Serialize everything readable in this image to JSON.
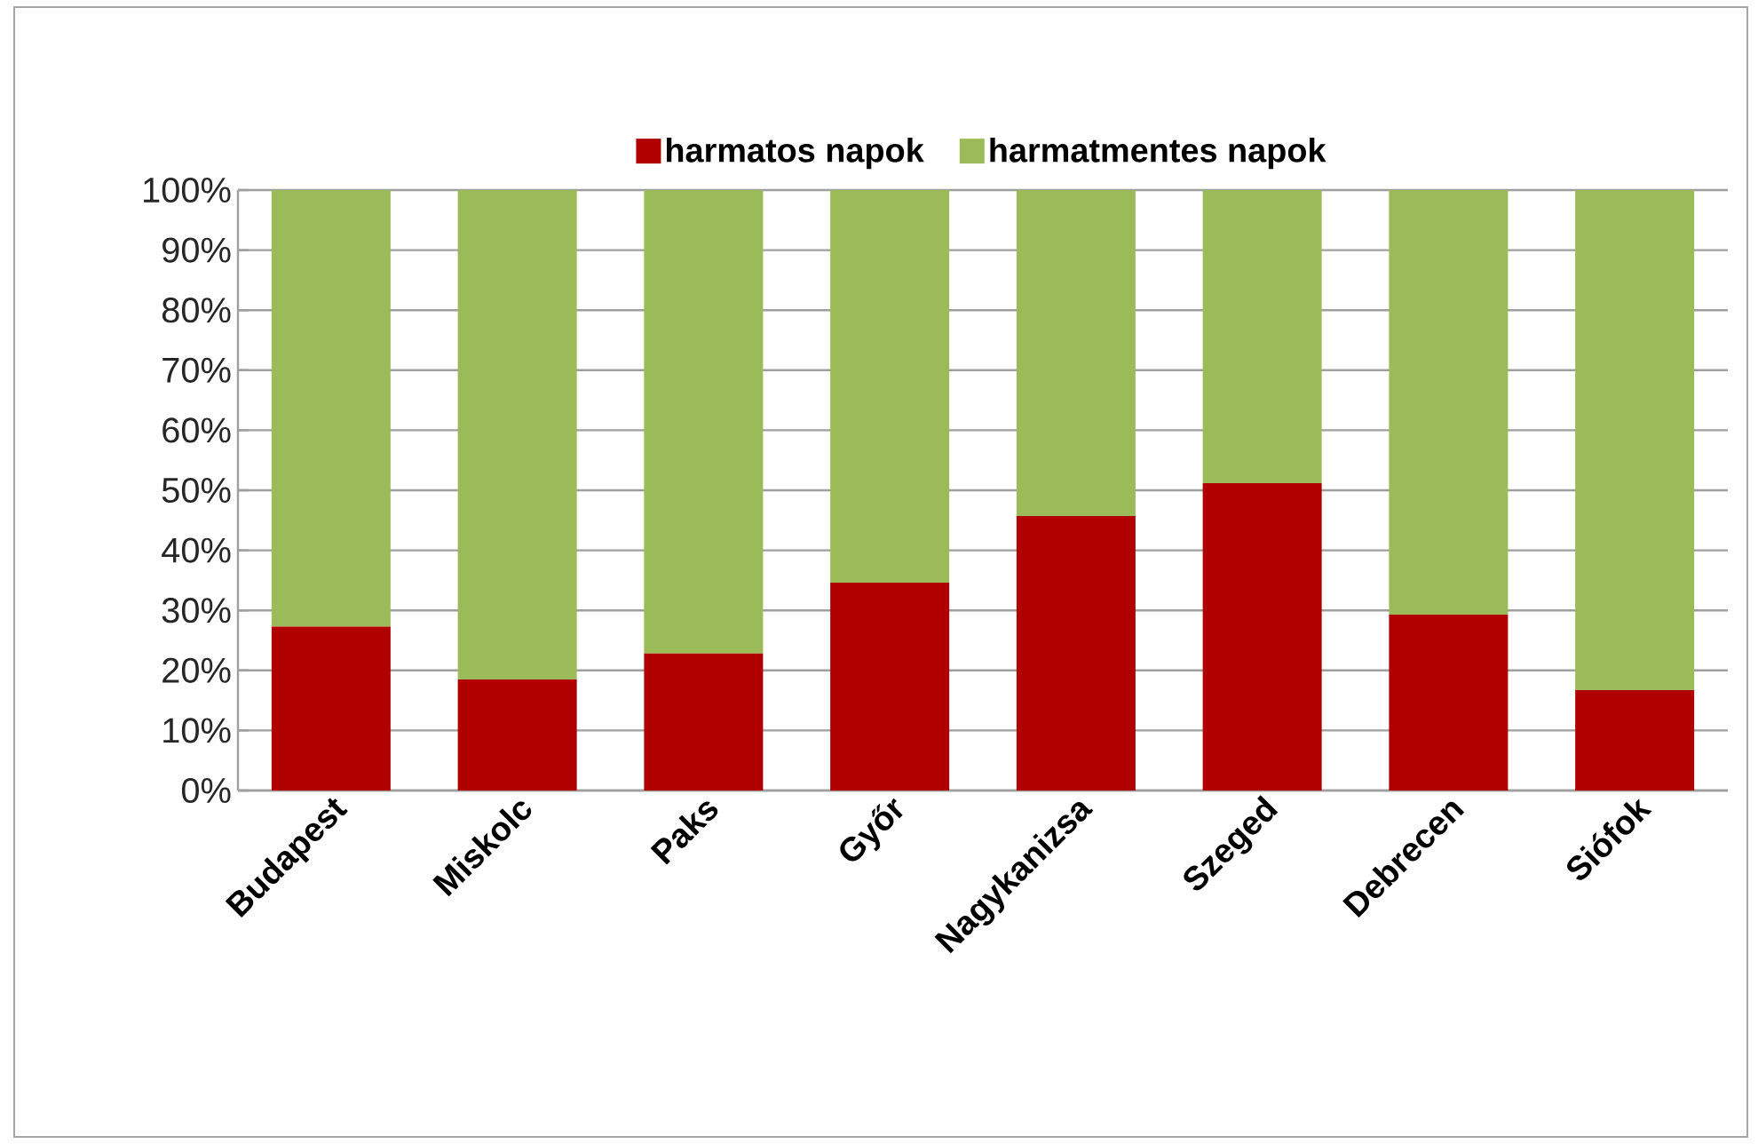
{
  "chart_data": {
    "type": "bar",
    "stacked": true,
    "grid": "y",
    "legend": "top",
    "categories": [
      "Budapest",
      "Miskolc",
      "Paks",
      "Győr",
      "Nagykanizsa",
      "Szeged",
      "Debrecen",
      "Siófok"
    ],
    "series": [
      {
        "name": "harmatos napok",
        "color": "#b00000",
        "values": [
          27.3,
          18.5,
          22.8,
          34.6,
          45.7,
          51.2,
          29.3,
          16.7
        ]
      },
      {
        "name": "harmatmentes napok",
        "color": "#9bbb59",
        "values": [
          72.7,
          81.5,
          77.2,
          65.4,
          54.3,
          48.8,
          70.7,
          83.3
        ]
      }
    ],
    "ylim": [
      0,
      100
    ],
    "yticks": [
      {
        "value": 0,
        "label": "0%"
      },
      {
        "value": 10,
        "label": "10%"
      },
      {
        "value": 20,
        "label": "20%"
      },
      {
        "value": 30,
        "label": "30%"
      },
      {
        "value": 40,
        "label": "40%"
      },
      {
        "value": 50,
        "label": "50%"
      },
      {
        "value": 60,
        "label": "60%"
      },
      {
        "value": 70,
        "label": "70%"
      },
      {
        "value": 80,
        "label": "80%"
      },
      {
        "value": 90,
        "label": "90%"
      },
      {
        "value": 100,
        "label": "100%"
      }
    ]
  }
}
